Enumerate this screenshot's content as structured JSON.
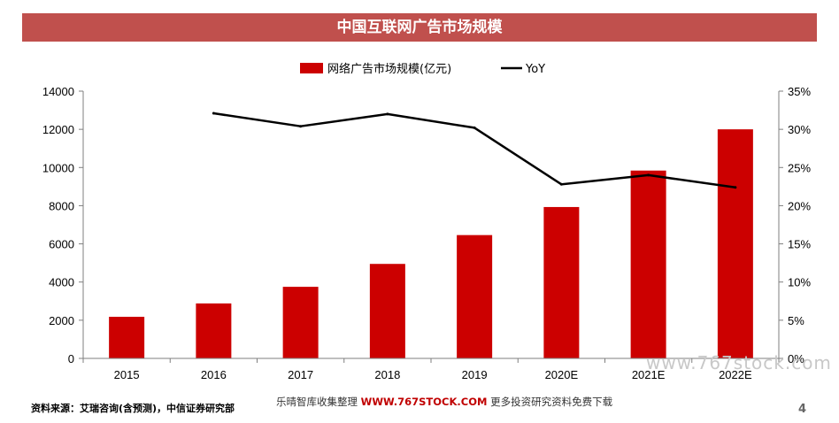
{
  "title": "中国互联网广告市场规模",
  "source": "资料来源：艾瑞咨询(含预测)，中信证券研究部",
  "footer": {
    "prefix": "乐晴智库收集整理",
    "brand": "WWW.767STOCK.COM",
    "suffix": "更多投资研究资料免费下载"
  },
  "page_number": "4",
  "watermark": "www.767stock.com",
  "colors": {
    "bar": "#cc0000",
    "line": "#000000",
    "title_bar": "#c0504d"
  },
  "chart_data": {
    "type": "bar",
    "categories": [
      "2015",
      "2016",
      "2017",
      "2018",
      "2019",
      "2020E",
      "2021E",
      "2022E"
    ],
    "series": [
      {
        "name": "网络广告市场规模(亿元)",
        "type": "bar",
        "axis": "left",
        "values": [
          2180,
          2880,
          3750,
          4950,
          6460,
          7930,
          9840,
          12000
        ]
      },
      {
        "name": "YoY",
        "type": "line",
        "axis": "right",
        "values": [
          null,
          32.1,
          30.4,
          32.0,
          30.2,
          22.8,
          24.0,
          22.4
        ]
      }
    ],
    "y_left": {
      "min": 0,
      "max": 14000,
      "ticks": [
        "0",
        "2000",
        "4000",
        "6000",
        "8000",
        "10000",
        "12000",
        "14000"
      ]
    },
    "y_right": {
      "min": 0,
      "max": 35,
      "ticks": [
        "0%",
        "5%",
        "10%",
        "15%",
        "20%",
        "25%",
        "30%",
        "35%"
      ]
    },
    "legend_position": "top-center",
    "grid": false
  }
}
